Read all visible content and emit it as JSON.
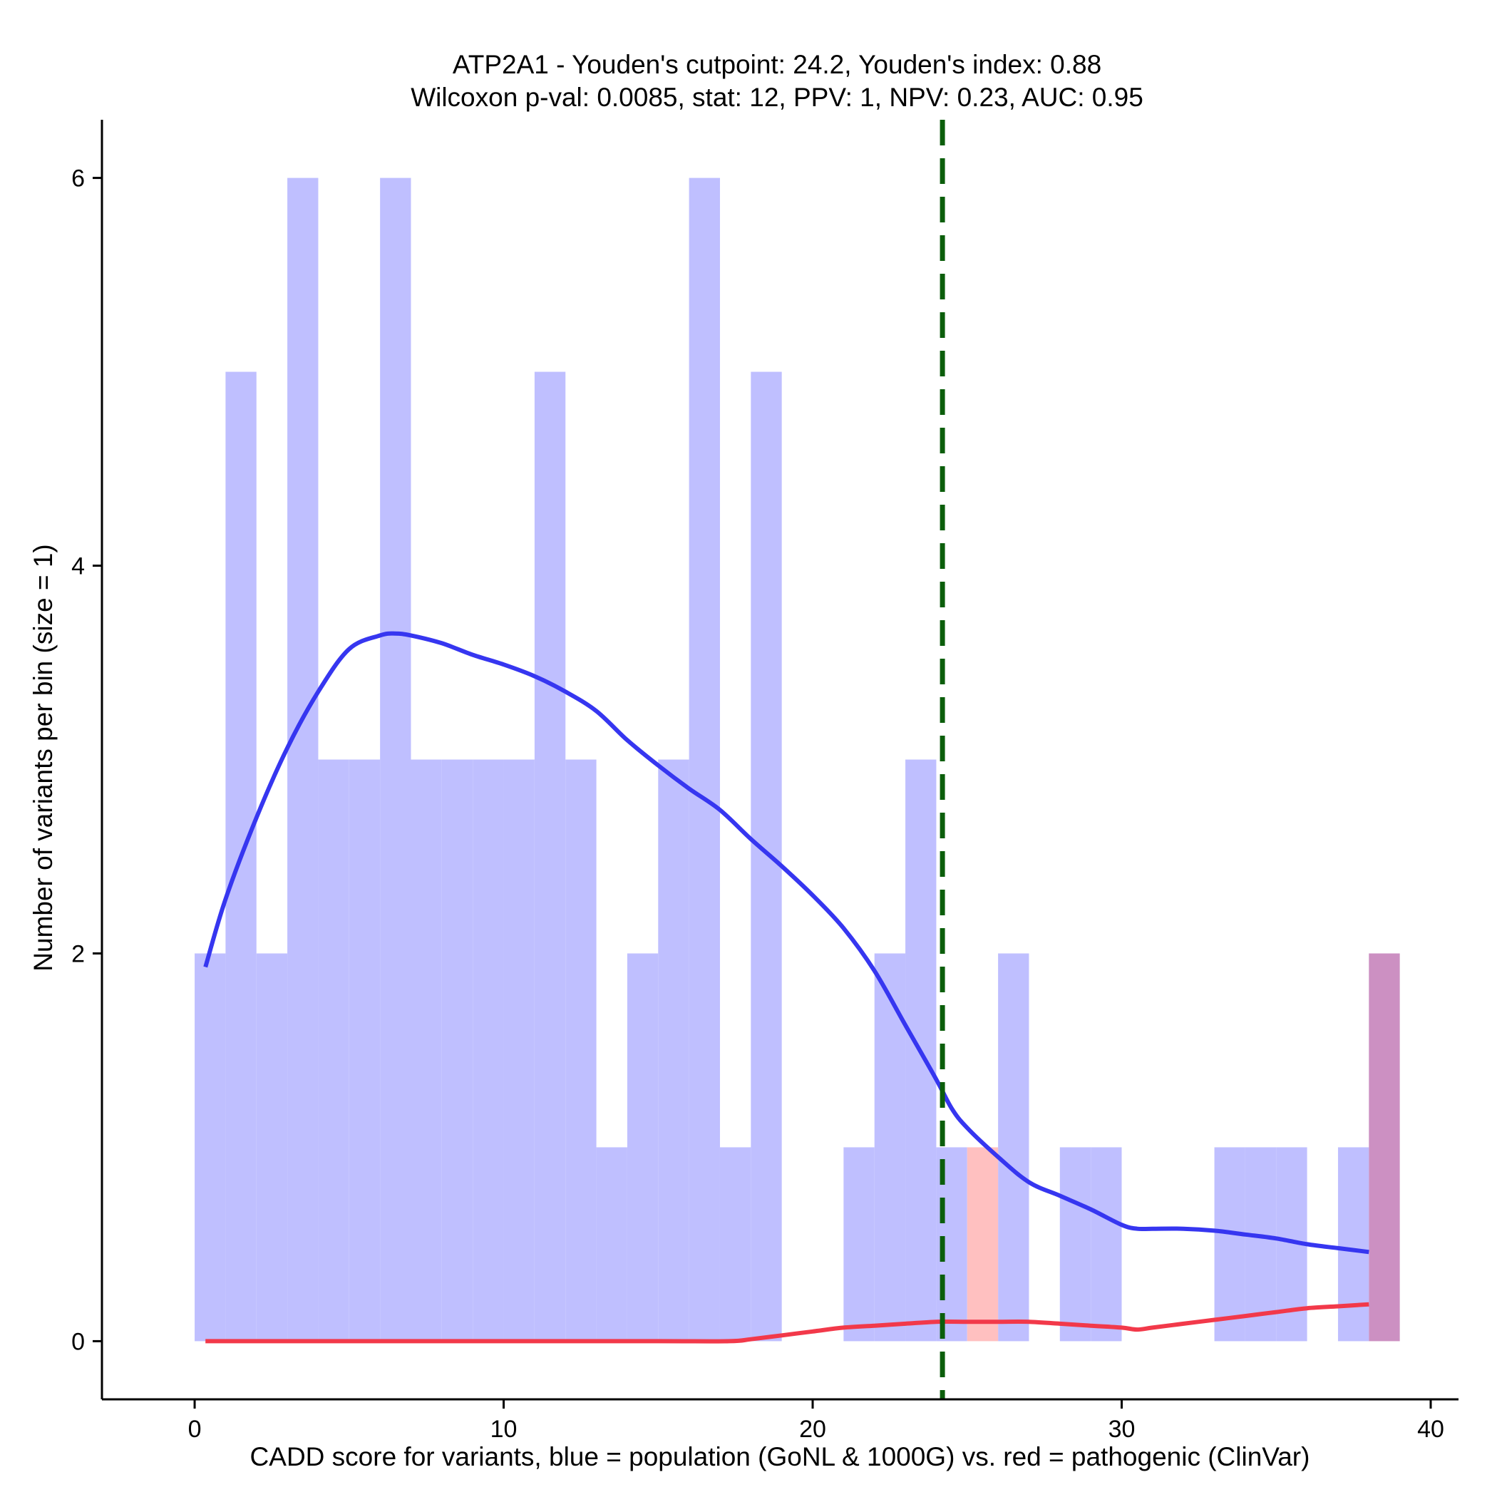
{
  "chart_data": {
    "type": "bar",
    "title": "ATP2A1 - Youden's cutpoint: 24.2, Youden's index: 0.88",
    "subtitle": "Wilcoxon p-val: 0.0085, stat: 12, PPV: 1, NPV: 0.23, AUC: 0.95",
    "xlabel": "CADD score for variants, blue = population (GoNL & 1000G) vs. red = pathogenic (ClinVar)",
    "ylabel": "Number of variants per bin (size = 1)",
    "xlim": [
      -3,
      40.9
    ],
    "ylim": [
      -0.3,
      6.3
    ],
    "x_ticks": [
      0,
      10,
      20,
      30,
      40
    ],
    "y_ticks": [
      0,
      2,
      4,
      6
    ],
    "bin_width": 1,
    "grid": false,
    "cutpoint": 24.2,
    "colors": {
      "population": "#bfbfff",
      "pathogenic": "#ffc0c0",
      "overlap": "#cc90c2",
      "population_density": "#3636f0",
      "pathogenic_density": "#f2394a",
      "cutpoint": "#0b5e0b"
    },
    "series": [
      {
        "name": "population",
        "bin_starts": [
          0,
          1,
          2,
          3,
          4,
          5,
          6,
          7,
          8,
          9,
          10,
          11,
          12,
          13,
          14,
          15,
          16,
          17,
          18,
          21,
          22,
          23,
          24,
          26,
          28,
          29,
          33,
          34,
          35,
          37,
          38
        ],
        "counts": [
          2,
          5,
          2,
          6,
          3,
          3,
          6,
          3,
          3,
          3,
          3,
          5,
          3,
          1,
          2,
          3,
          6,
          1,
          5,
          1,
          2,
          3,
          1,
          2,
          1,
          1,
          1,
          1,
          1,
          1,
          2
        ]
      },
      {
        "name": "pathogenic",
        "bin_starts": [
          25,
          38
        ],
        "counts": [
          1,
          2
        ]
      }
    ],
    "density_curves": [
      {
        "name": "population",
        "x": [
          0.35,
          1,
          2,
          3,
          4,
          5,
          6,
          6.5,
          7,
          8,
          9,
          10,
          11,
          12,
          13,
          14,
          15,
          16,
          17,
          18,
          19,
          20,
          21,
          22,
          23,
          24,
          24.5,
          25,
          26,
          27,
          28,
          29,
          30,
          30.5,
          31,
          32,
          33,
          34,
          35,
          36,
          37,
          38
        ],
        "y": [
          1.93,
          2.28,
          2.7,
          3.06,
          3.35,
          3.57,
          3.64,
          3.65,
          3.64,
          3.6,
          3.54,
          3.49,
          3.43,
          3.35,
          3.25,
          3.1,
          2.97,
          2.85,
          2.74,
          2.59,
          2.45,
          2.3,
          2.13,
          1.91,
          1.63,
          1.35,
          1.2,
          1.1,
          0.95,
          0.82,
          0.75,
          0.68,
          0.6,
          0.58,
          0.58,
          0.58,
          0.57,
          0.55,
          0.53,
          0.5,
          0.48,
          0.46
        ]
      },
      {
        "name": "pathogenic",
        "x": [
          0.35,
          5,
          10,
          15,
          17.3,
          18,
          19,
          20,
          21,
          22,
          23,
          24,
          25,
          26,
          27,
          28,
          29,
          30,
          30.5,
          31,
          32,
          33,
          34,
          35,
          36,
          37,
          38
        ],
        "y": [
          0,
          0,
          0,
          0,
          0,
          0.01,
          0.03,
          0.05,
          0.07,
          0.08,
          0.09,
          0.1,
          0.1,
          0.1,
          0.1,
          0.09,
          0.08,
          0.07,
          0.06,
          0.07,
          0.09,
          0.11,
          0.13,
          0.15,
          0.17,
          0.18,
          0.19
        ]
      }
    ]
  }
}
